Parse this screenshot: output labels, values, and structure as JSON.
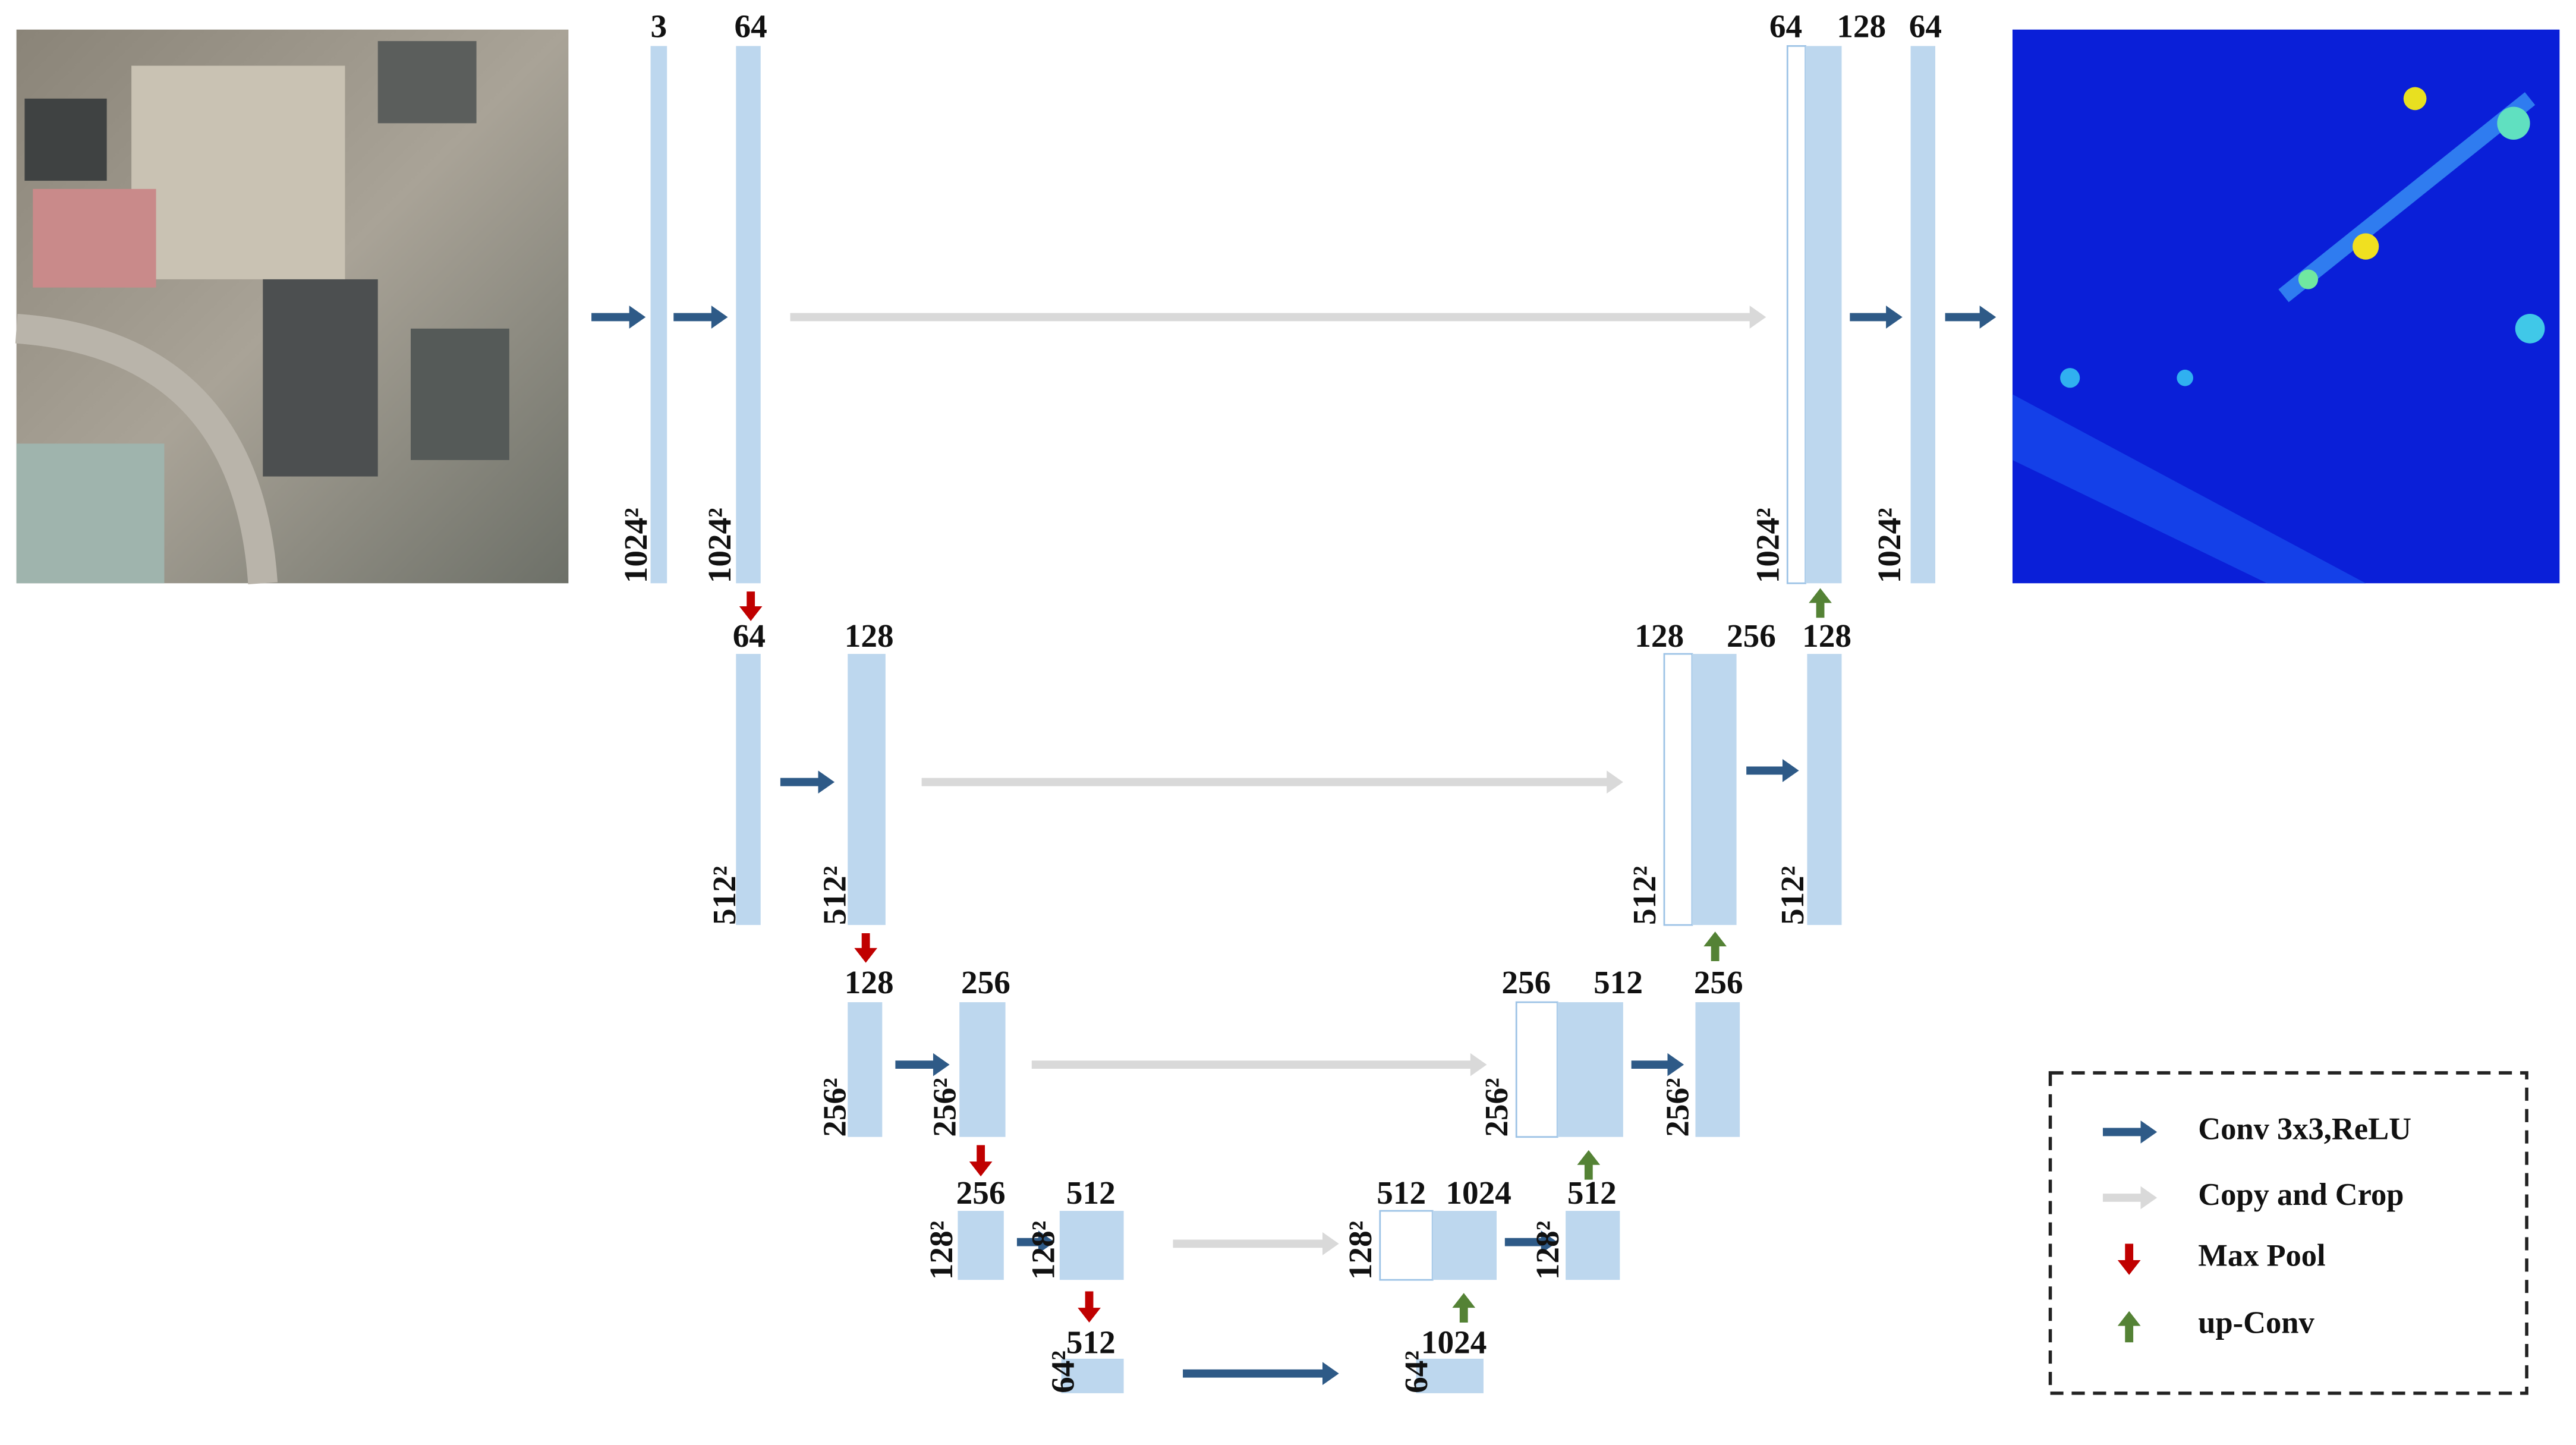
{
  "channel_labels": [
    "3",
    "64",
    "64",
    "128",
    "64",
    "64",
    "128",
    "128",
    "256",
    "128",
    "128",
    "256",
    "256",
    "512",
    "256",
    "256",
    "512",
    "512",
    "1024",
    "512",
    "512",
    "1024"
  ],
  "size_labels": [
    "1024²",
    "1024²",
    "1024²",
    "1024²",
    "512²",
    "512²",
    "512²",
    "512²",
    "256²",
    "256²",
    "256²",
    "256²",
    "128²",
    "128²",
    "128²",
    "128²",
    "64²",
    "64²"
  ],
  "legend": [
    "Conv 3x3,ReLU",
    "Copy and Crop",
    "Max Pool",
    "up-Conv"
  ]
}
